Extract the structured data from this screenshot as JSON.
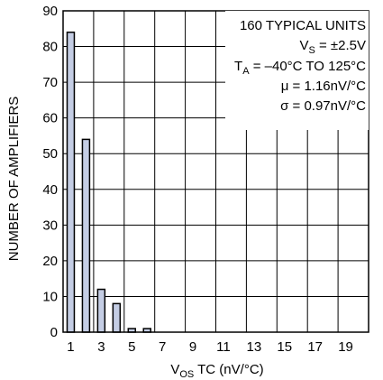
{
  "chart_data": {
    "type": "bar",
    "x": [
      1,
      2,
      3,
      4,
      5,
      6,
      7,
      8,
      9,
      10,
      11,
      12,
      13,
      14,
      15,
      16,
      17,
      18,
      19,
      20
    ],
    "values": [
      84,
      54,
      12,
      8,
      1,
      1,
      0,
      0,
      0,
      0,
      0,
      0,
      0,
      0,
      0,
      0,
      0,
      0,
      0,
      0
    ],
    "xticks": [
      "1",
      "3",
      "5",
      "7",
      "9",
      "11",
      "13",
      "15",
      "17",
      "19"
    ],
    "yticks": [
      "0",
      "10",
      "20",
      "30",
      "40",
      "50",
      "60",
      "70",
      "80",
      "90"
    ],
    "ylim": [
      0,
      90
    ],
    "ylabel": "NUMBER OF AMPLIFIERS",
    "xlabel": {
      "main": "V",
      "sub": "OS",
      "rest": " TC (nV/°C)"
    },
    "grid": true,
    "bar_fill": "#c4cde4",
    "bar_stroke": "#000000",
    "annotations": {
      "line1": "160 TYPICAL UNITS",
      "line2": {
        "main": "V",
        "sub": "S",
        "rest": " = ±2.5V"
      },
      "line3": {
        "main": "T",
        "sub": "A",
        "rest": " = –40°C TO 125°C"
      },
      "line4": "μ = 1.16nV/°C",
      "line5": "σ = 0.97nV/°C"
    }
  }
}
